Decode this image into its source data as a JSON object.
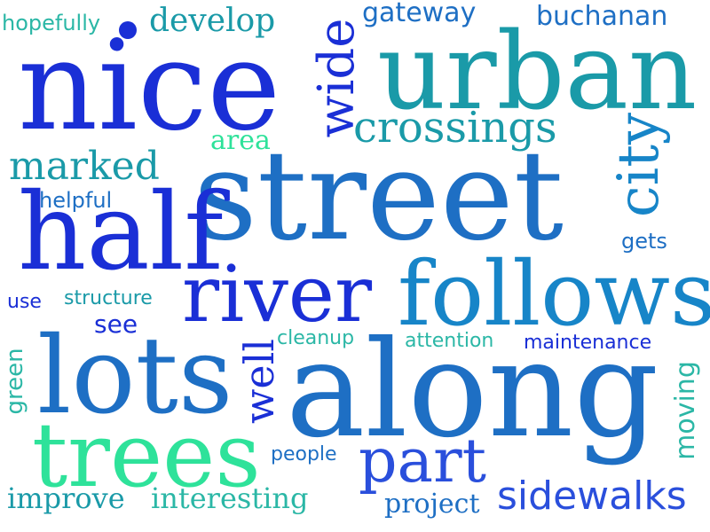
{
  "colors": {
    "background": "#ffffff",
    "blue": "#1a2fd6",
    "royal": "#2a4fdc",
    "mid_blue": "#1e6fc4",
    "sky": "#1785c8",
    "teal": "#1a9aa8",
    "aqua": "#2bb7a6",
    "mint": "#2ee29a"
  },
  "words": {
    "nice": {
      "text": "nice",
      "color": "#1a2fd6"
    },
    "urban": {
      "text": "urban",
      "color": "#1a9aa8"
    },
    "street": {
      "text": "street",
      "color": "#1e6fc4"
    },
    "half": {
      "text": "half",
      "color": "#1a2fd6"
    },
    "along": {
      "text": "along",
      "color": "#1e6fc4"
    },
    "lots": {
      "text": "lots",
      "color": "#1e6fc4"
    },
    "follows": {
      "text": "follows",
      "color": "#1785c8"
    },
    "river": {
      "text": "river",
      "color": "#1a2fd6"
    },
    "trees": {
      "text": "trees",
      "color": "#2ee29a"
    },
    "part": {
      "text": "part",
      "color": "#2a4fdc"
    },
    "crossings": {
      "text": "crossings",
      "color": "#1a9aa8"
    },
    "marked": {
      "text": "marked",
      "color": "#1a9aa8"
    },
    "sidewalks": {
      "text": "sidewalks",
      "color": "#2a4fdc"
    },
    "develop": {
      "text": "develop",
      "color": "#1a9aa8"
    },
    "improve": {
      "text": "improve",
      "color": "#1a9aa8"
    },
    "interesting": {
      "text": "interesting",
      "color": "#2bb7a6"
    },
    "project": {
      "text": "project",
      "color": "#1e6fc4"
    },
    "buchanan": {
      "text": "buchanan",
      "color": "#1e6fc4"
    },
    "gateway": {
      "text": "gateway",
      "color": "#1e6fc4"
    },
    "area": {
      "text": "area",
      "color": "#2ee29a"
    },
    "see": {
      "text": "see",
      "color": "#1a2fd6"
    },
    "cleanup": {
      "text": "cleanup",
      "color": "#2bb7a6"
    },
    "attention": {
      "text": "attention",
      "color": "#2bb7a6"
    },
    "maintenance": {
      "text": "maintenance",
      "color": "#1a2fd6"
    },
    "people": {
      "text": "people",
      "color": "#1e6fc4"
    },
    "structure": {
      "text": "structure",
      "color": "#1a9aa8"
    },
    "use": {
      "text": "use",
      "color": "#1a2fd6"
    },
    "helpful": {
      "text": "helpful",
      "color": "#1e6fc4"
    },
    "hopefully": {
      "text": "hopefully",
      "color": "#2bb7a6"
    },
    "gets": {
      "text": "gets",
      "color": "#1e6fc4"
    },
    "wide": {
      "text": "wide",
      "color": "#1a2fd6"
    },
    "city": {
      "text": "city",
      "color": "#1785c8"
    },
    "well": {
      "text": "well",
      "color": "#1a2fd6"
    },
    "green": {
      "text": "green",
      "color": "#2bb7a6"
    },
    "moving": {
      "text": "moving",
      "color": "#2bb7a6"
    }
  },
  "dot_color": "#1a2fd6"
}
